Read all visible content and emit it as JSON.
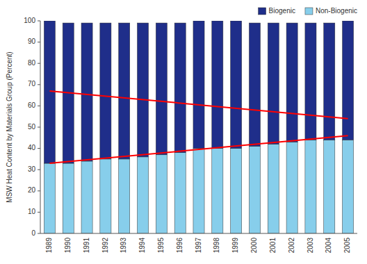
{
  "chart_data": {
    "type": "bar",
    "stacked": true,
    "categories": [
      "1989",
      "1990",
      "1991",
      "1992",
      "1993",
      "1994",
      "1995",
      "1996",
      "1997",
      "1998",
      "1999",
      "2000",
      "2001",
      "2002",
      "2003",
      "2004",
      "2005"
    ],
    "series": [
      {
        "name": "Non-Biogenic",
        "color": "#87CEEB",
        "values": [
          33,
          33,
          34,
          35,
          35,
          36,
          37,
          38,
          40,
          40,
          40,
          41,
          42,
          43,
          44,
          44,
          44
        ]
      },
      {
        "name": "Biogenic",
        "color": "#1F2E8A",
        "values": [
          67,
          66,
          65,
          64,
          64,
          63,
          62,
          61,
          60,
          60,
          60,
          58,
          57,
          56,
          55,
          55,
          56
        ]
      }
    ],
    "trends": [
      {
        "color": "red",
        "values": [
          67,
          54
        ]
      },
      {
        "color": "red",
        "values": [
          33,
          46
        ]
      }
    ],
    "ylabel": "MSW Heat Content by Materials Group (Percent)",
    "ylim": [
      0,
      100
    ],
    "yticks": [
      0,
      10,
      20,
      30,
      40,
      50,
      60,
      70,
      80,
      90,
      100
    ],
    "grid": false,
    "legend": "top"
  }
}
